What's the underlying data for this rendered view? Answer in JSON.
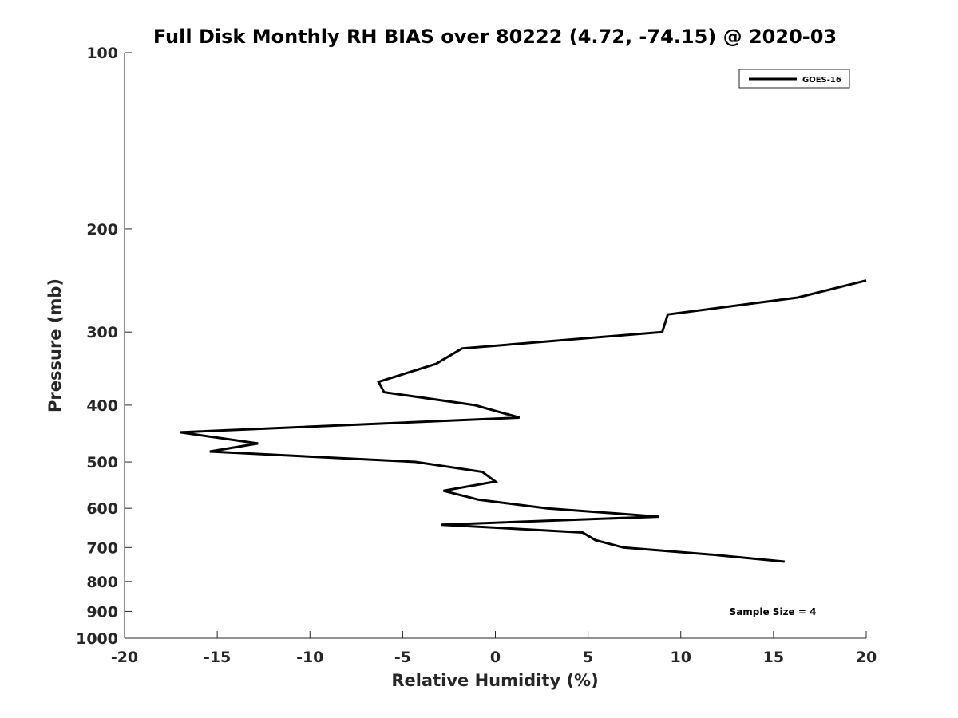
{
  "chart_data": {
    "type": "line",
    "title": "Full Disk Monthly RH BIAS over 80222 (4.72, -74.15) @ 2020-03",
    "xlabel": "Relative Humidity (%)",
    "ylabel": "Pressure (mb)",
    "xlim": [
      -20,
      20
    ],
    "ylim": [
      100,
      1000
    ],
    "y_scale": "log",
    "y_reversed": true,
    "grid": false,
    "legend_position": "top-right",
    "x_ticks": [
      -20,
      -15,
      -10,
      -5,
      0,
      5,
      10,
      15,
      20
    ],
    "x_tick_labels": [
      "-20",
      "-15",
      "-10",
      "-5",
      "0",
      "5",
      "10",
      "15",
      "20"
    ],
    "y_ticks": [
      100,
      200,
      300,
      400,
      500,
      600,
      700,
      800,
      900,
      1000
    ],
    "y_tick_labels": [
      "100",
      "200",
      "300",
      "400",
      "500",
      "600",
      "700",
      "800",
      "900",
      "1000"
    ],
    "series": [
      {
        "name": "GOES-16",
        "color": "#000000",
        "points": [
          {
            "x": 20.0,
            "y": 245
          },
          {
            "x": 16.3,
            "y": 262
          },
          {
            "x": 9.3,
            "y": 280
          },
          {
            "x": 9.0,
            "y": 300
          },
          {
            "x": -1.8,
            "y": 320
          },
          {
            "x": -3.2,
            "y": 340
          },
          {
            "x": -6.3,
            "y": 365
          },
          {
            "x": -6.0,
            "y": 380
          },
          {
            "x": -1.1,
            "y": 400
          },
          {
            "x": 1.3,
            "y": 420
          },
          {
            "x": -17.0,
            "y": 445
          },
          {
            "x": -12.8,
            "y": 465
          },
          {
            "x": -15.4,
            "y": 480
          },
          {
            "x": -4.3,
            "y": 500
          },
          {
            "x": -0.7,
            "y": 520
          },
          {
            "x": 0.0,
            "y": 540
          },
          {
            "x": -2.8,
            "y": 560
          },
          {
            "x": -0.9,
            "y": 580
          },
          {
            "x": 2.8,
            "y": 600
          },
          {
            "x": 8.8,
            "y": 620
          },
          {
            "x": -2.9,
            "y": 640
          },
          {
            "x": 4.7,
            "y": 660
          },
          {
            "x": 5.4,
            "y": 680
          },
          {
            "x": 6.9,
            "y": 700
          },
          {
            "x": 11.7,
            "y": 720
          },
          {
            "x": 15.6,
            "y": 740
          }
        ]
      }
    ],
    "annotations": [
      {
        "text": "Sample Size = 4"
      }
    ]
  }
}
